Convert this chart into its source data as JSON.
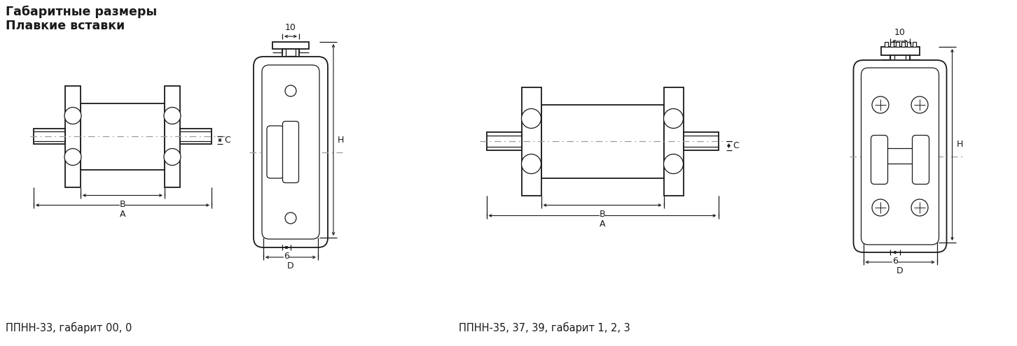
{
  "title1": "Габаритные размеры",
  "title2": "Плавкие вставки",
  "caption1": "ППНН-33, габарит 00, 0",
  "caption2": "ППНН-35, 37, 39, габарит 1, 2, 3",
  "bg_color": "#ffffff",
  "line_color": "#1a1a1a",
  "dash_color": "#999999",
  "title_fontsize": 12.5,
  "caption_fontsize": 10.5,
  "dim_fontsize": 9
}
